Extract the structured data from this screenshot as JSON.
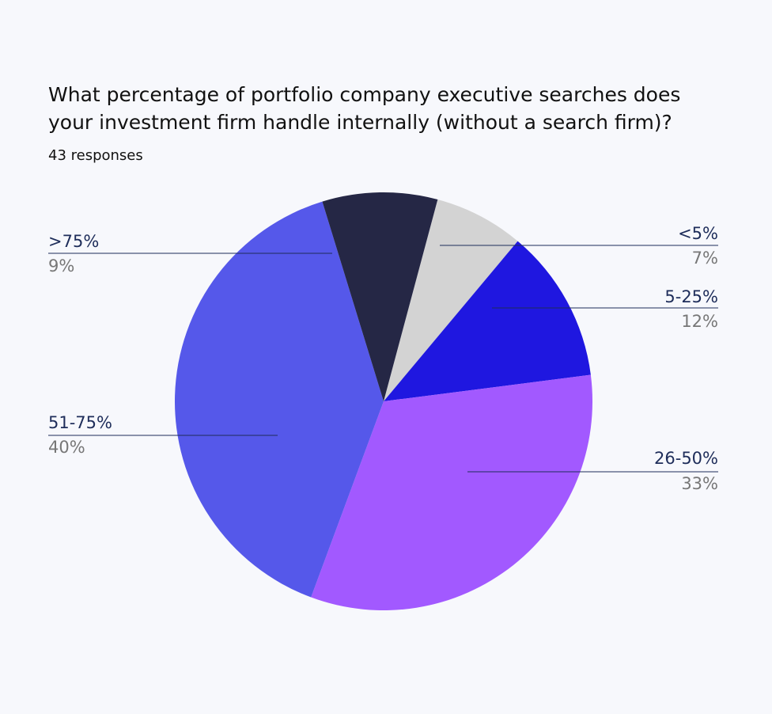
{
  "chart_data": {
    "type": "pie",
    "title": "What percentage of portfolio company executive searches does your investment firm handle internally (without a search firm)?",
    "subtitle": "43 responses",
    "categories": [
      "<5%",
      "5-25%",
      "26-50%",
      "51-75%",
      ">75%"
    ],
    "values": [
      7,
      12,
      33,
      40,
      9
    ],
    "value_labels": [
      "7%",
      "12%",
      "33%",
      "40%",
      "9%"
    ],
    "colors": [
      "#d3d3d3",
      "#1f17e0",
      "#a259ff",
      "#5558ea",
      "#252745"
    ]
  }
}
